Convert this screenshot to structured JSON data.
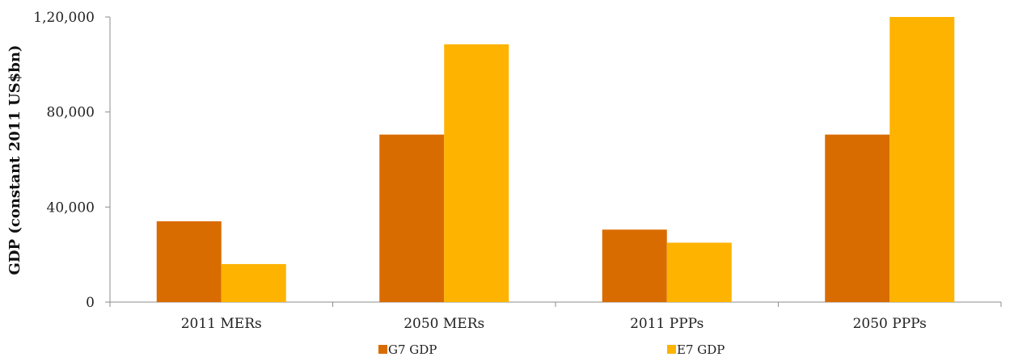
{
  "chart_data": {
    "type": "bar",
    "categories": [
      "2011 MERs",
      "2050 MERs",
      "2011 PPPs",
      "2050 PPPs"
    ],
    "series": [
      {
        "name": "G7 GDP",
        "color": "#D96C00",
        "values": [
          34000,
          70500,
          30500,
          70500
        ]
      },
      {
        "name": "E7 GDP",
        "color": "#FDB300",
        "values": [
          16000,
          108500,
          25000,
          120000
        ]
      }
    ],
    "ylabel": "GDP (constant 2011 US$bn)",
    "xlabel": "",
    "ylim": [
      0,
      120000
    ],
    "yticks": [
      0,
      40000,
      80000,
      120000
    ],
    "ytick_labels": [
      "0",
      "40,000",
      "80,000",
      "1,20,000"
    ],
    "grid": false,
    "legend": "bottom"
  }
}
